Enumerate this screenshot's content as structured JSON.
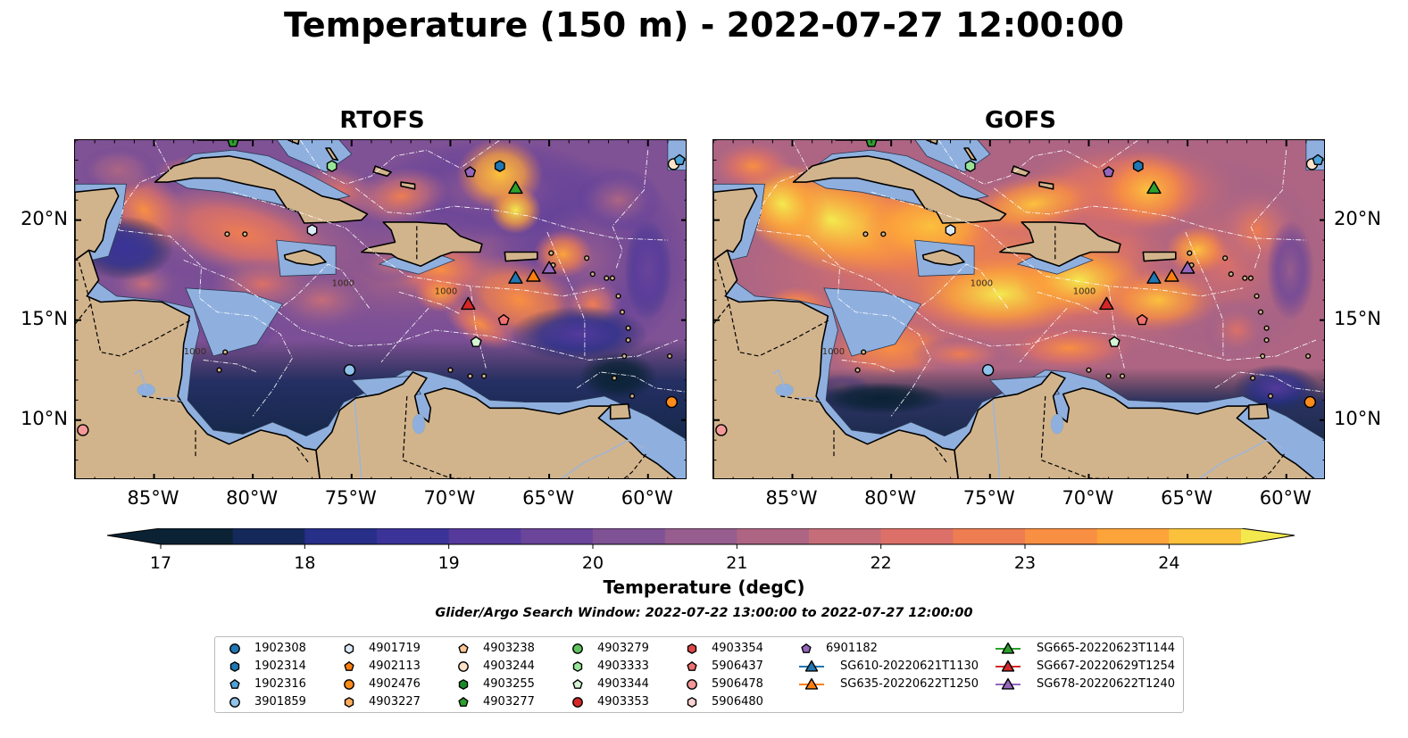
{
  "title": "Temperature (150 m) - 2022-07-27 12:00:00",
  "panels": [
    {
      "name": "RTOFS",
      "theme": "cool"
    },
    {
      "name": "GOFS",
      "theme": "warm"
    }
  ],
  "map_extent": {
    "lon": [
      -89,
      -58
    ],
    "lat": [
      7,
      24
    ]
  },
  "lon_ticks": [
    "85°W",
    "80°W",
    "75°W",
    "70°W",
    "65°W",
    "60°W"
  ],
  "lat_ticks": [
    "20°N",
    "15°N",
    "10°N"
  ],
  "colorbar": {
    "label": "Temperature (degC)",
    "ticks": [
      "17",
      "18",
      "19",
      "20",
      "21",
      "22",
      "23",
      "24"
    ],
    "range": [
      17,
      24.5
    ],
    "colors": [
      "#0a2234",
      "#14295a",
      "#272f89",
      "#3b3398",
      "#553a9c",
      "#6a4599",
      "#7f5195",
      "#965d8e",
      "#ad6583",
      "#c56d79",
      "#dc7068",
      "#ee7d52",
      "#f98f42",
      "#fca43a",
      "#fbc13d",
      "#f3e94e"
    ]
  },
  "search_window": "Glider/Argo Search Window: 2022-07-22 13:00:00 to 2022-07-27 12:00:00",
  "contour_label": "1000",
  "legend": [
    {
      "label": "1902308",
      "shape": "circle",
      "color": "#1f77b4"
    },
    {
      "label": "1902314",
      "shape": "hexagon",
      "color": "#1f77b4"
    },
    {
      "label": "1902316",
      "shape": "pentagon",
      "color": "#4fa3d8"
    },
    {
      "label": "3901859",
      "shape": "circle",
      "color": "#8fc3eb"
    },
    {
      "label": "4901719",
      "shape": "hexagon",
      "color": "#dcebf7"
    },
    {
      "label": "4902113",
      "shape": "pentagon",
      "color": "#ff7f0e"
    },
    {
      "label": "4902476",
      "shape": "circle",
      "color": "#ff8c1a"
    },
    {
      "label": "4903227",
      "shape": "hexagon",
      "color": "#ffad5c"
    },
    {
      "label": "4903238",
      "shape": "pentagon",
      "color": "#ffc896"
    },
    {
      "label": "4903244",
      "shape": "circle",
      "color": "#ffe3c8"
    },
    {
      "label": "4903255",
      "shape": "hexagon",
      "color": "#1b8a2a"
    },
    {
      "label": "4903277",
      "shape": "pentagon",
      "color": "#2ca02c"
    },
    {
      "label": "4903279",
      "shape": "circle",
      "color": "#5fc35f"
    },
    {
      "label": "4903333",
      "shape": "hexagon",
      "color": "#98e598"
    },
    {
      "label": "4903344",
      "shape": "pentagon",
      "color": "#d4f5d4"
    },
    {
      "label": "4903353",
      "shape": "circle",
      "color": "#d62728"
    },
    {
      "label": "4903354",
      "shape": "hexagon",
      "color": "#e04848"
    },
    {
      "label": "5906437",
      "shape": "pentagon",
      "color": "#f07070"
    },
    {
      "label": "5906478",
      "shape": "circle",
      "color": "#f49898"
    },
    {
      "label": "5906480",
      "shape": "hexagon",
      "color": "#fcd3d3"
    },
    {
      "label": "6901182",
      "shape": "pentagon",
      "color": "#9467bd"
    },
    {
      "label": "SG610-20220621T1130",
      "shape": "triangle",
      "color": "#1f77b4",
      "line": true
    },
    {
      "label": "SG635-20220622T1250",
      "shape": "triangle",
      "color": "#ff7f0e",
      "line": true
    },
    {
      "label": "SG665-20220623T1144",
      "shape": "triangle",
      "color": "#2ca02c",
      "line": true
    },
    {
      "label": "SG667-20220629T1254",
      "shape": "triangle",
      "color": "#d62728",
      "line": true
    },
    {
      "label": "SG678-20220622T1240",
      "shape": "triangle",
      "color": "#9467bd",
      "line": true
    }
  ],
  "markers": [
    {
      "id": "4903277",
      "lon": -81.0,
      "lat": 23.9,
      "shape": "pentagon",
      "color": "#2ca02c"
    },
    {
      "id": "4903333",
      "lon": -76.0,
      "lat": 22.7,
      "shape": "hexagon",
      "color": "#98e598"
    },
    {
      "id": "6901182",
      "lon": -69.0,
      "lat": 22.4,
      "shape": "pentagon",
      "color": "#9467bd"
    },
    {
      "id": "1902314",
      "lon": -67.5,
      "lat": 22.7,
      "shape": "hexagon",
      "color": "#1f77b4"
    },
    {
      "id": "SG665-20220623T1144",
      "lon": -66.7,
      "lat": 21.6,
      "shape": "triangle",
      "color": "#2ca02c"
    },
    {
      "id": "4903244",
      "lon": -58.7,
      "lat": 22.8,
      "shape": "circle",
      "color": "#ffe3c8"
    },
    {
      "id": "1902316",
      "lon": -58.4,
      "lat": 23.0,
      "shape": "pentagon",
      "color": "#4fa3d8"
    },
    {
      "id": "4901719",
      "lon": -77.0,
      "lat": 19.5,
      "shape": "hexagon",
      "color": "#dcebf7"
    },
    {
      "id": "SG610-20220621T1130",
      "lon": -66.7,
      "lat": 17.1,
      "shape": "triangle",
      "color": "#1f77b4"
    },
    {
      "id": "SG635-20220622T1250",
      "lon": -65.8,
      "lat": 17.2,
      "shape": "triangle",
      "color": "#ff7f0e"
    },
    {
      "id": "SG678-20220622T1240",
      "lon": -65.0,
      "lat": 17.6,
      "shape": "triangle",
      "color": "#9467bd"
    },
    {
      "id": "SG667-20220629T1254",
      "lon": -69.1,
      "lat": 15.8,
      "shape": "triangle",
      "color": "#d62728"
    },
    {
      "id": "5906437",
      "lon": -67.3,
      "lat": 15.0,
      "shape": "pentagon",
      "color": "#f07070"
    },
    {
      "id": "4903344",
      "lon": -68.7,
      "lat": 13.9,
      "shape": "pentagon",
      "color": "#d4f5d4"
    },
    {
      "id": "3901859",
      "lon": -75.1,
      "lat": 12.5,
      "shape": "circle",
      "color": "#8fc3eb"
    },
    {
      "id": "4902476",
      "lon": -58.8,
      "lat": 10.9,
      "shape": "circle",
      "color": "#ff8c1a"
    },
    {
      "id": "5906478",
      "lon": -88.6,
      "lat": 9.5,
      "shape": "circle",
      "color": "#f49898"
    }
  ]
}
